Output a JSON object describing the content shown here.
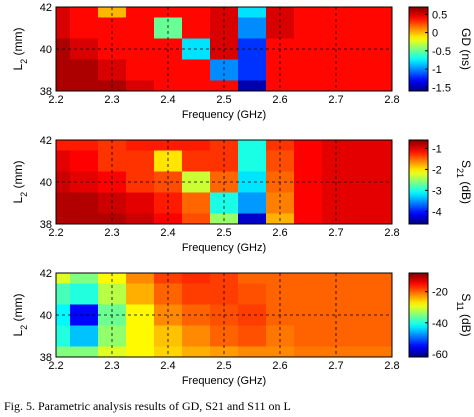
{
  "caption": "Fig. 5.   Parametric analysis results of GD, S21 and S11 on L",
  "chart_data": [
    {
      "type": "heatmap",
      "xlabel": "Frequency (GHz)",
      "ylabel": [
        "L",
        "2",
        " (mm)"
      ],
      "x": [
        2.2,
        2.25,
        2.3,
        2.35,
        2.4,
        2.45,
        2.5,
        2.55,
        2.6,
        2.65,
        2.7,
        2.75,
        2.8
      ],
      "y": [
        42,
        41,
        40,
        39,
        38
      ],
      "z": [
        [
          0.5,
          0.4,
          0.0,
          0.4,
          0.4,
          0.4,
          0.5,
          -0.8,
          0.5,
          0.4,
          0.4,
          0.4,
          0.4
        ],
        [
          0.5,
          0.4,
          0.4,
          0.4,
          -0.5,
          0.4,
          0.5,
          -1.0,
          0.5,
          0.4,
          0.4,
          0.4,
          0.4
        ],
        [
          0.6,
          0.5,
          0.4,
          0.4,
          0.4,
          -0.8,
          0.5,
          -1.2,
          0.4,
          0.4,
          0.4,
          0.4,
          0.4
        ],
        [
          0.6,
          0.6,
          0.5,
          0.4,
          0.4,
          0.4,
          -1.0,
          -1.2,
          0.4,
          0.4,
          0.4,
          0.4,
          0.4
        ],
        [
          0.6,
          0.6,
          0.6,
          0.5,
          0.4,
          0.4,
          0.4,
          -1.5,
          0.4,
          0.4,
          0.4,
          0.4,
          0.4
        ]
      ],
      "xlim": [
        2.2,
        2.8
      ],
      "xticks": [
        2.2,
        2.3,
        2.4,
        2.5,
        2.6,
        2.7,
        2.8
      ],
      "ylim": [
        38,
        42
      ],
      "yticks": [
        38,
        40,
        42
      ],
      "grid": true,
      "colorbar": {
        "label": [
          "GD (ns)"
        ],
        "lim": [
          -1.6,
          0.7
        ],
        "ticks": [
          0.5,
          0,
          -0.5,
          -1,
          -1.5
        ]
      }
    },
    {
      "type": "heatmap",
      "xlabel": "Frequency (GHz)",
      "ylabel": [
        "L",
        "2",
        " (mm)"
      ],
      "x": [
        2.2,
        2.25,
        2.3,
        2.35,
        2.4,
        2.45,
        2.5,
        2.55,
        2.6,
        2.65,
        2.7,
        2.75,
        2.8
      ],
      "y": [
        42,
        41,
        40,
        39,
        38
      ],
      "z": [
        [
          -1.2,
          -1.2,
          -1.3,
          -1.2,
          -1.2,
          -1.2,
          -1.3,
          -3.0,
          -1.3,
          -1.1,
          -1.0,
          -1.0,
          -1.0
        ],
        [
          -1.0,
          -1.1,
          -1.3,
          -1.3,
          -2.0,
          -1.3,
          -1.3,
          -3.0,
          -1.4,
          -1.1,
          -1.0,
          -1.0,
          -1.0
        ],
        [
          -0.9,
          -1.0,
          -1.1,
          -1.3,
          -1.4,
          -2.3,
          -1.5,
          -3.2,
          -1.5,
          -1.1,
          -1.0,
          -1.0,
          -1.0
        ],
        [
          -0.8,
          -0.8,
          -0.9,
          -1.0,
          -1.2,
          -1.5,
          -3.0,
          -3.5,
          -1.6,
          -1.1,
          -1.0,
          -1.0,
          -1.0
        ],
        [
          -0.8,
          -0.8,
          -0.8,
          -0.9,
          -1.1,
          -1.4,
          -2.5,
          -4.3,
          -1.8,
          -1.1,
          -1.0,
          -1.0,
          -1.0
        ]
      ],
      "xlim": [
        2.2,
        2.8
      ],
      "xticks": [
        2.2,
        2.3,
        2.4,
        2.5,
        2.6,
        2.7,
        2.8
      ],
      "ylim": [
        38,
        42
      ],
      "yticks": [
        38,
        40,
        42
      ],
      "grid": true,
      "colorbar": {
        "label": [
          "S",
          "21",
          " (dB)"
        ],
        "lim": [
          -4.6,
          -0.6
        ],
        "ticks": [
          -1,
          -2,
          -3,
          -4
        ]
      }
    },
    {
      "type": "heatmap",
      "xlabel": "Frequency (GHz)",
      "ylabel": [
        "L",
        "2",
        " (mm)"
      ],
      "x": [
        2.2,
        2.25,
        2.3,
        2.35,
        2.4,
        2.45,
        2.5,
        2.55,
        2.6,
        2.65,
        2.7,
        2.75,
        2.8
      ],
      "y": [
        42,
        41,
        40,
        39,
        38
      ],
      "z": [
        [
          -30,
          -35,
          -28,
          -22,
          -18,
          -17,
          -18,
          -20,
          -20,
          -20,
          -20,
          -20,
          -20
        ],
        [
          -38,
          -40,
          -32,
          -24,
          -20,
          -18,
          -18,
          -19,
          -20,
          -20,
          -20,
          -20,
          -20
        ],
        [
          -42,
          -55,
          -36,
          -28,
          -22,
          -20,
          -19,
          -18,
          -20,
          -20,
          -20,
          -20,
          -20
        ],
        [
          -40,
          -45,
          -34,
          -28,
          -25,
          -22,
          -20,
          -19,
          -21,
          -20,
          -20,
          -20,
          -20
        ],
        [
          -35,
          -35,
          -30,
          -28,
          -26,
          -24,
          -23,
          -22,
          -22,
          -21,
          -21,
          -21,
          -21
        ]
      ],
      "xlim": [
        2.2,
        2.8
      ],
      "xticks": [
        2.2,
        2.3,
        2.4,
        2.5,
        2.6,
        2.7,
        2.8
      ],
      "ylim": [
        38,
        42
      ],
      "yticks": [
        38,
        40,
        42
      ],
      "grid": true,
      "colorbar": {
        "label": [
          "S",
          "11",
          " (dB)"
        ],
        "lim": [
          -62,
          -8
        ],
        "ticks": [
          -20,
          -40,
          -60
        ]
      }
    }
  ]
}
